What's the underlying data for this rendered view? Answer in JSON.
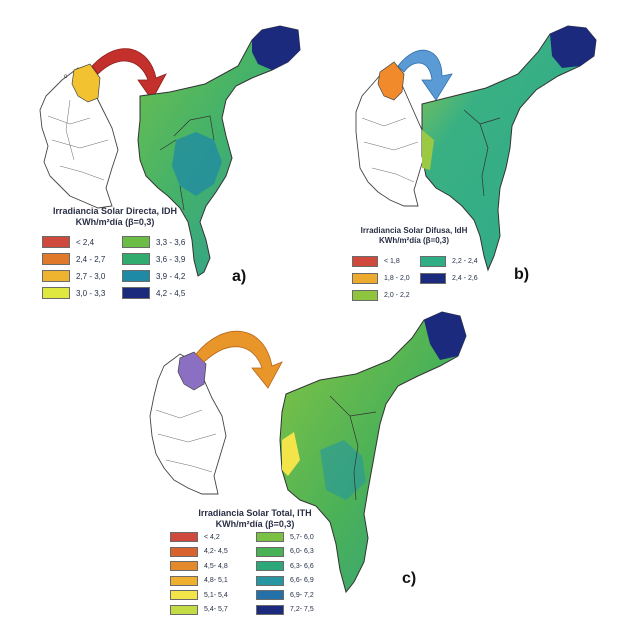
{
  "panels": {
    "a": {
      "label": "a)",
      "title_line1": "Irradiancia Solar Directa, IDH",
      "title_line2": "KWh/m²día (β=0,3)",
      "legend": [
        {
          "label": "< 2,4",
          "color": "#cf4a3c"
        },
        {
          "label": "2,4 - 2,7",
          "color": "#e07a2a"
        },
        {
          "label": "2,7 - 3,0",
          "color": "#eeb42f"
        },
        {
          "label": "3,0 - 3,3",
          "color": "#dfe83f"
        },
        {
          "label": "3,3 - 3,6",
          "color": "#6cbd45"
        },
        {
          "label": "3,6 - 3,9",
          "color": "#30ad6e"
        },
        {
          "label": "3,9 - 4,2",
          "color": "#1f8aa6"
        },
        {
          "label": "4,2 - 4,5",
          "color": "#1b2a7d"
        }
      ]
    },
    "b": {
      "label": "b)",
      "title_line1": "Irradiancia Solar Difusa, IdH",
      "title_line2": "KWh/m²día (β=0,3)",
      "legend": [
        {
          "label": "< 1,8",
          "color": "#cf4a3c"
        },
        {
          "label": "1,8 - 2,0",
          "color": "#eeaa2f"
        },
        {
          "label": "2,0 - 2,2",
          "color": "#8fc43f"
        },
        {
          "label": "2,2 - 2,4",
          "color": "#2fae86"
        },
        {
          "label": "2,4 - 2,6",
          "color": "#1b2a7d"
        }
      ]
    },
    "c": {
      "label": "c)",
      "title_line1": "Irradiancia Solar Total, ITH",
      "title_line2": "KWh/m²día (β=0,3)",
      "legend": [
        {
          "label": "< 4,2",
          "color": "#cf4a3c"
        },
        {
          "label": "4,2- 4,5",
          "color": "#d8632f"
        },
        {
          "label": "4,5- 4,8",
          "color": "#e58a2c"
        },
        {
          "label": "4,8- 5,1",
          "color": "#f0b02f"
        },
        {
          "label": "5,1- 5,4",
          "color": "#f3e44a"
        },
        {
          "label": "5,4- 5,7",
          "color": "#c3dc45"
        },
        {
          "label": "5,7- 6,0",
          "color": "#79c043"
        },
        {
          "label": "6,0- 6,3",
          "color": "#48b255"
        },
        {
          "label": "6,3- 6,6",
          "color": "#2ba77a"
        },
        {
          "label": "6,6- 6,9",
          "color": "#2796a0"
        },
        {
          "label": "6,9- 7,2",
          "color": "#2470a8"
        },
        {
          "label": "7,2- 7,5",
          "color": "#1b2a7d"
        }
      ]
    }
  },
  "colors": {
    "arrow_a": "#c4302b",
    "arrow_b": "#5b9bd5",
    "arrow_c": "#e8952a",
    "highlight_a": "#f2c230",
    "highlight_b": "#f08a2a",
    "highlight_c": "#8a6fc2"
  }
}
